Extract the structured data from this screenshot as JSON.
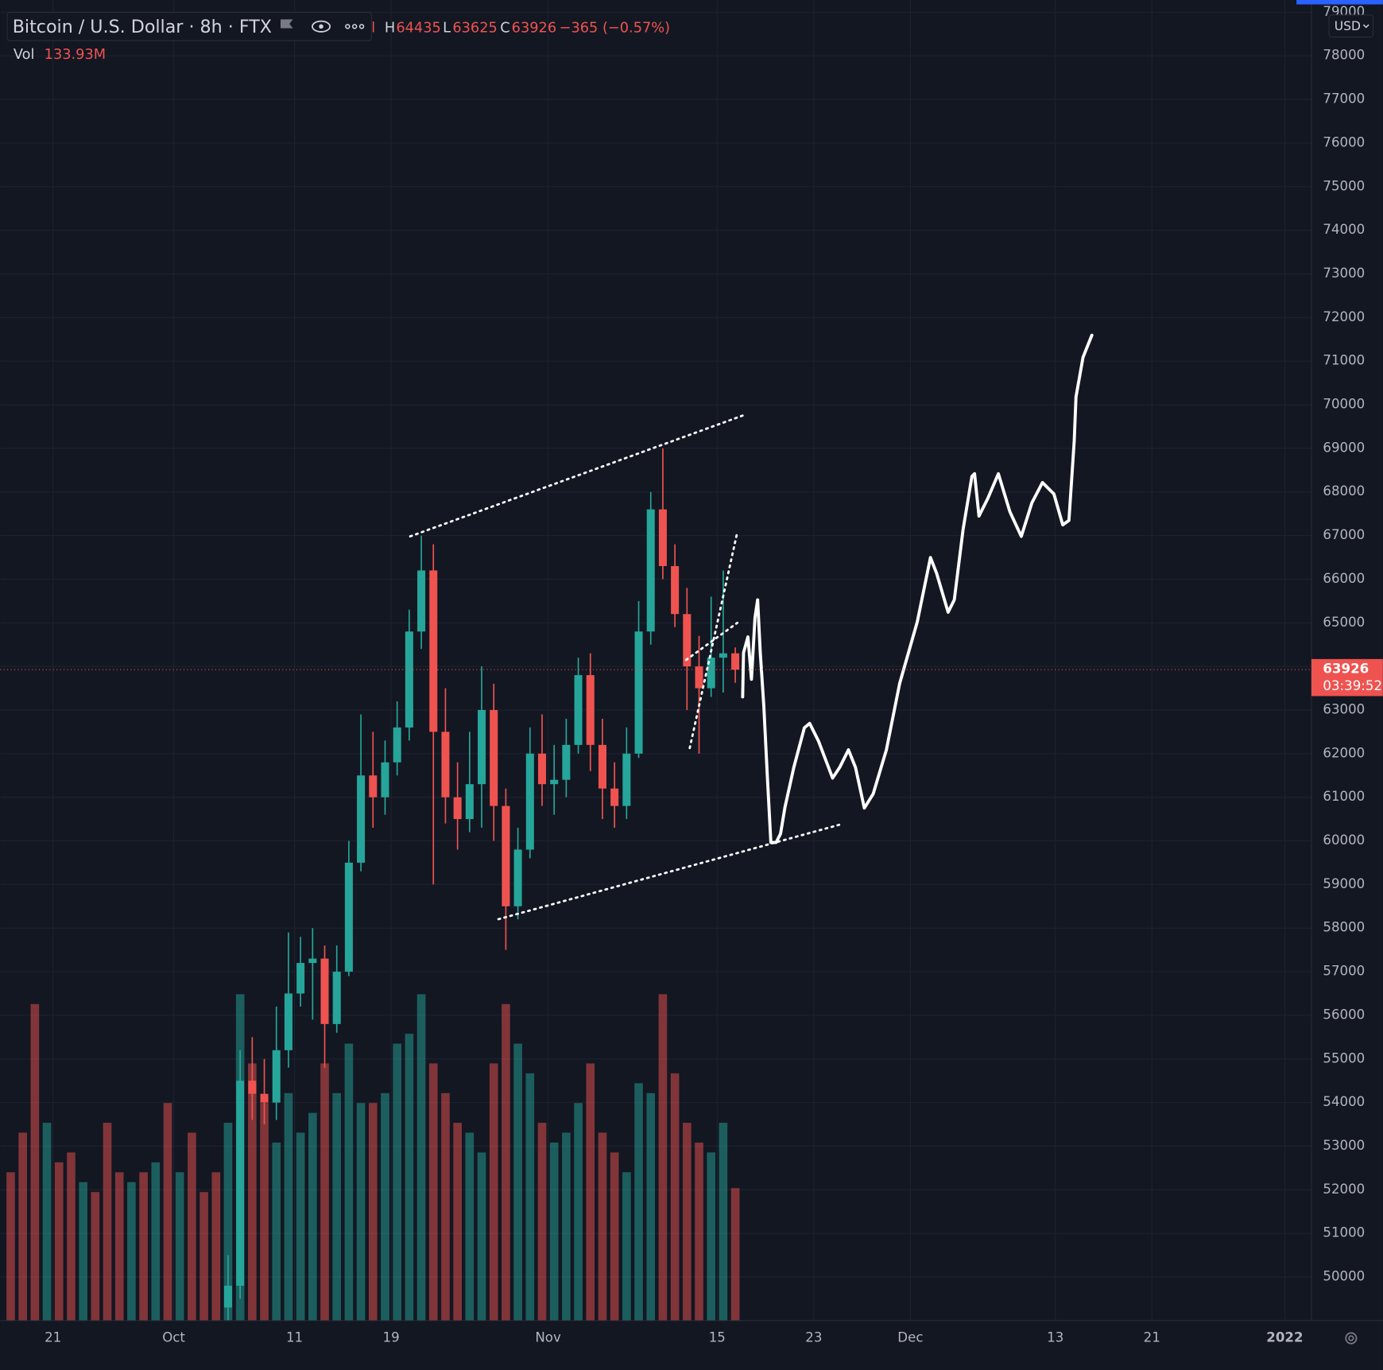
{
  "chart_data": {
    "type": "candlestick",
    "title": "Bitcoin / U.S. Dollar · 8h · FTX",
    "ohlc_labels": {
      "open_cut": "l",
      "high_key": "H",
      "high": 64435,
      "low_key": "L",
      "low": 63625,
      "close_key": "C",
      "close": 63926,
      "change": "−365 (−0.57%)"
    },
    "volume_label": "Vol",
    "volume_value": "133.93M",
    "currency": "USD",
    "last_price": 63926,
    "countdown": "03:39:52",
    "up_color": "#26a69a",
    "down_color": "#ef5350",
    "grid": true,
    "xlim": [
      "2021-09-16T15:00",
      "2022-01-03T05:00"
    ],
    "xticks": [
      {
        "value": "2021-09-21",
        "label": "21"
      },
      {
        "value": "2021-10-01",
        "label": "Oct"
      },
      {
        "value": "2021-10-11",
        "label": "11"
      },
      {
        "value": "2021-10-19",
        "label": "19"
      },
      {
        "value": "2021-11-01",
        "label": "Nov"
      },
      {
        "value": "2021-11-15",
        "label": "15"
      },
      {
        "value": "2021-11-23",
        "label": "23"
      },
      {
        "value": "2021-12-01",
        "label": "Dec"
      },
      {
        "value": "2021-12-13",
        "label": "13"
      },
      {
        "value": "2021-12-21",
        "label": "21"
      },
      {
        "value": "2022-01-01",
        "label": "2022"
      }
    ],
    "ylim": [
      49000,
      79280
    ],
    "yticks": [
      50000,
      51000,
      52000,
      53000,
      54000,
      55000,
      56000,
      57000,
      58000,
      59000,
      60000,
      61000,
      62000,
      63000,
      64000,
      65000,
      66000,
      67000,
      68000,
      69000,
      70000,
      71000,
      72000,
      73000,
      74000,
      75000,
      76000,
      77000,
      78000,
      79000
    ],
    "x": [
      "2021-10-05",
      "2021-10-06",
      "2021-10-07",
      "2021-10-08",
      "2021-10-09",
      "2021-10-10",
      "2021-10-11",
      "2021-10-12",
      "2021-10-13",
      "2021-10-14",
      "2021-10-15",
      "2021-10-16",
      "2021-10-17",
      "2021-10-18",
      "2021-10-19",
      "2021-10-20",
      "2021-10-21",
      "2021-10-22",
      "2021-10-23",
      "2021-10-24",
      "2021-10-25",
      "2021-10-26",
      "2021-10-27",
      "2021-10-28",
      "2021-10-29",
      "2021-10-30",
      "2021-10-31",
      "2021-11-01",
      "2021-11-02",
      "2021-11-03",
      "2021-11-04",
      "2021-11-05",
      "2021-11-06",
      "2021-11-07",
      "2021-11-08",
      "2021-11-09",
      "2021-11-10",
      "2021-11-11",
      "2021-11-12",
      "2021-11-13",
      "2021-11-14",
      "2021-11-15",
      "2021-11-16"
    ],
    "open": [
      49300,
      49800,
      54500,
      54200,
      54000,
      55200,
      56500,
      57200,
      57300,
      55800,
      57000,
      59500,
      61500,
      61000,
      61800,
      62600,
      64800,
      66200,
      62500,
      61000,
      60500,
      61300,
      63000,
      60800,
      58500,
      59800,
      62000,
      61300,
      61400,
      62200,
      63800,
      62200,
      61200,
      60800,
      62000,
      64800,
      67600,
      66300,
      65200,
      64000,
      63500,
      64200,
      64300
    ],
    "high": [
      50500,
      55200,
      55500,
      55000,
      56200,
      57900,
      57800,
      58000,
      57600,
      57600,
      60000,
      62900,
      62500,
      62300,
      63200,
      65300,
      67000,
      66800,
      63500,
      61800,
      62500,
      64000,
      63600,
      61200,
      60300,
      62600,
      62900,
      62200,
      62800,
      64200,
      64300,
      62800,
      61800,
      62600,
      65500,
      68000,
      69000,
      66800,
      65800,
      64700,
      65600,
      66200,
      64435
    ],
    "low": [
      48800,
      49500,
      53600,
      53500,
      53600,
      54800,
      56200,
      55900,
      54800,
      55600,
      56900,
      59300,
      60300,
      60600,
      61500,
      62300,
      64400,
      59000,
      60400,
      59800,
      60200,
      60300,
      60000,
      57500,
      58200,
      59600,
      60800,
      60600,
      61000,
      62000,
      61600,
      60500,
      60300,
      60500,
      61900,
      64500,
      66000,
      64900,
      63000,
      62000,
      63300,
      63400,
      63625
    ],
    "close": [
      49800,
      54500,
      54200,
      54000,
      55200,
      56500,
      57200,
      57300,
      55800,
      57000,
      59500,
      61500,
      61000,
      61800,
      62600,
      64800,
      66200,
      62500,
      61000,
      60500,
      61300,
      63000,
      60800,
      58500,
      59800,
      62000,
      61300,
      61400,
      62200,
      63800,
      62200,
      61200,
      60800,
      62000,
      64800,
      67600,
      66300,
      65200,
      64000,
      63500,
      64200,
      64300,
      63926
    ],
    "volume": {
      "x": [
        "2021-09-17",
        "2021-09-18",
        "2021-09-19",
        "2021-09-20",
        "2021-09-21",
        "2021-09-22",
        "2021-09-23",
        "2021-09-24",
        "2021-09-25",
        "2021-09-26",
        "2021-09-27",
        "2021-09-28",
        "2021-09-29",
        "2021-09-30",
        "2021-10-01",
        "2021-10-02",
        "2021-10-03",
        "2021-10-04",
        "2021-10-05",
        "2021-10-06",
        "2021-10-07",
        "2021-10-08",
        "2021-10-09",
        "2021-10-10",
        "2021-10-11",
        "2021-10-12",
        "2021-10-13",
        "2021-10-14",
        "2021-10-15",
        "2021-10-16",
        "2021-10-17",
        "2021-10-18",
        "2021-10-19",
        "2021-10-20",
        "2021-10-21",
        "2021-10-22",
        "2021-10-23",
        "2021-10-24",
        "2021-10-25",
        "2021-10-26",
        "2021-10-27",
        "2021-10-28",
        "2021-10-29",
        "2021-10-30",
        "2021-10-31",
        "2021-11-01",
        "2021-11-02",
        "2021-11-03",
        "2021-11-04",
        "2021-11-05",
        "2021-11-06",
        "2021-11-07",
        "2021-11-08",
        "2021-11-09",
        "2021-11-10",
        "2021-11-11",
        "2021-11-12",
        "2021-11-13",
        "2021-11-14",
        "2021-11-15",
        "2021-11-16"
      ],
      "values": [
        150,
        190,
        320,
        200,
        160,
        170,
        140,
        130,
        200,
        150,
        140,
        150,
        160,
        220,
        150,
        190,
        130,
        150,
        200,
        330,
        260,
        220,
        180,
        230,
        190,
        210,
        260,
        230,
        280,
        220,
        220,
        230,
        280,
        290,
        330,
        260,
        230,
        200,
        190,
        170,
        260,
        320,
        280,
        250,
        200,
        180,
        190,
        220,
        260,
        190,
        170,
        150,
        240,
        230,
        330,
        250,
        200,
        180,
        170,
        200,
        134
      ],
      "colors": [
        "#ef5350",
        "#ef5350",
        "#ef5350",
        "#26a69a",
        "#ef5350",
        "#ef5350",
        "#26a69a",
        "#ef5350",
        "#ef5350",
        "#ef5350",
        "#26a69a",
        "#ef5350",
        "#26a69a",
        "#ef5350",
        "#26a69a",
        "#ef5350",
        "#ef5350",
        "#ef5350",
        "#26a69a",
        "#26a69a",
        "#ef5350",
        "#ef5350",
        "#26a69a",
        "#26a69a",
        "#26a69a",
        "#26a69a",
        "#ef5350",
        "#26a69a",
        "#26a69a",
        "#26a69a",
        "#ef5350",
        "#26a69a",
        "#26a69a",
        "#26a69a",
        "#26a69a",
        "#ef5350",
        "#ef5350",
        "#ef5350",
        "#26a69a",
        "#26a69a",
        "#ef5350",
        "#ef5350",
        "#26a69a",
        "#26a69a",
        "#ef5350",
        "#26a69a",
        "#26a69a",
        "#26a69a",
        "#ef5350",
        "#ef5350",
        "#ef5350",
        "#26a69a",
        "#26a69a",
        "#26a69a",
        "#ef5350",
        "#ef5350",
        "#ef5350",
        "#ef5350",
        "#26a69a",
        "#26a69a",
        "#ef5350"
      ]
    }
  }
}
